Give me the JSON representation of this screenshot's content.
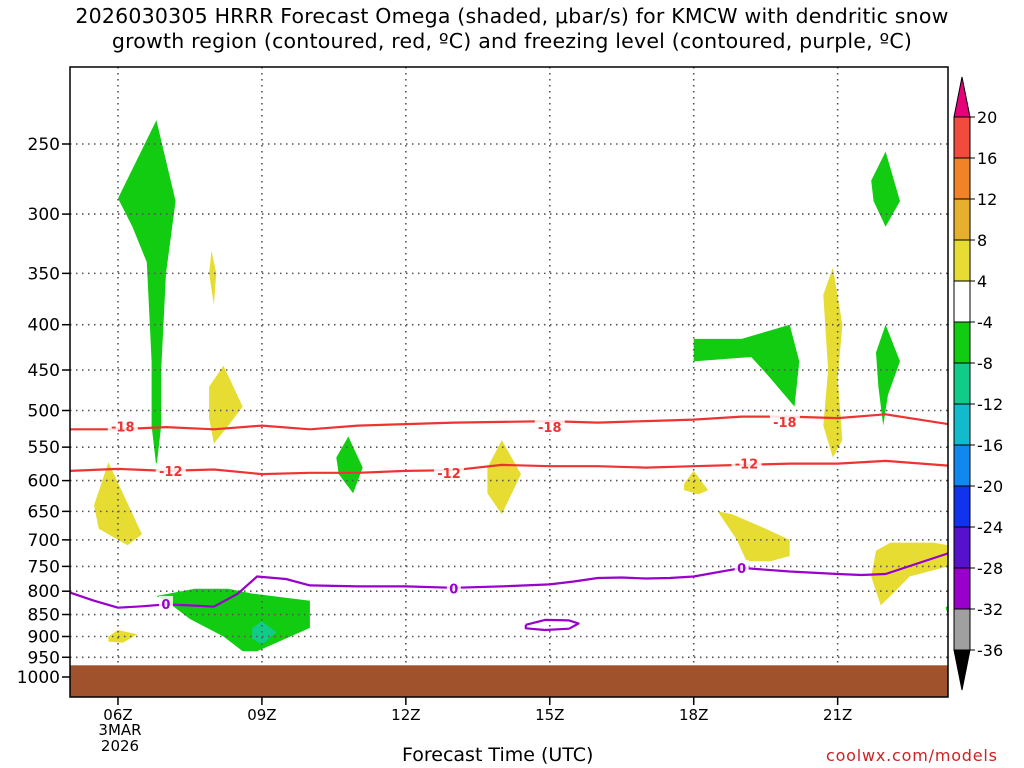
{
  "title": "2026030305 HRRR Forecast Omega (shaded, μbar/s) for KMCW with dendritic snow\ngrowth region (contoured, red, ºC) and freezing level (contoured, purple, ºC)",
  "x_axis_title": "Forecast Time (UTC)",
  "credit": "coolwx.com/models",
  "start_date": [
    "3MAR",
    "2026"
  ],
  "chart_data": {
    "type": "time-height cross section",
    "title": "2026030305 HRRR Forecast Omega (shaded, μbar/s) for KMCW with dendritic snow growth region (contoured, red, ºC) and freezing level (contoured, purple, ºC)",
    "xlabel": "Forecast Time (UTC)",
    "ylabel": "",
    "x_ticks": [
      6,
      9,
      12,
      15,
      18,
      21
    ],
    "x_tick_labels": [
      "06Z",
      "09Z",
      "12Z",
      "15Z",
      "18Z",
      "21Z"
    ],
    "xlim": [
      5,
      23.3
    ],
    "y_ticks": [
      250,
      300,
      350,
      400,
      450,
      500,
      550,
      600,
      650,
      700,
      750,
      800,
      850,
      900,
      950,
      1000
    ],
    "ylim": [
      200,
      1030
    ],
    "y_scale": "log-pressure",
    "grid": true,
    "ground_below_hpa": 970,
    "ground_color": "#a0522d",
    "colorbar": {
      "levels": [
        -36,
        -32,
        -28,
        -24,
        -20,
        -16,
        -12,
        -8,
        -4,
        4,
        8,
        12,
        16,
        20
      ],
      "colors": [
        "#000000",
        "#a0a0a0",
        "#9900cc",
        "#5511cc",
        "#1133ee",
        "#1188ee",
        "#11bbcc",
        "#11cc88",
        "#11cc11",
        "#ffffff",
        "#e6dc32",
        "#e6af2d",
        "#f08228",
        "#f04b3c",
        "#e6007a"
      ]
    },
    "omega_regions": [
      {
        "value": -6,
        "color": "#11cc11",
        "points": [
          [
            6.0,
            288
          ],
          [
            6.8,
            235
          ],
          [
            7.2,
            290
          ],
          [
            7.0,
            350
          ],
          [
            6.9,
            450
          ],
          [
            6.9,
            520
          ],
          [
            6.8,
            580
          ],
          [
            6.7,
            520
          ],
          [
            6.7,
            440
          ],
          [
            6.6,
            340
          ],
          [
            6.3,
            310
          ]
        ]
      },
      {
        "value": 6,
        "color": "#e6dc32",
        "points": [
          [
            7.95,
            330
          ],
          [
            8.05,
            350
          ],
          [
            8.0,
            380
          ],
          [
            7.9,
            350
          ]
        ]
      },
      {
        "value": 6,
        "color": "#e6dc32",
        "points": [
          [
            7.9,
            470
          ],
          [
            8.2,
            445
          ],
          [
            8.6,
            495
          ],
          [
            8.3,
            520
          ],
          [
            8.0,
            545
          ],
          [
            7.9,
            510
          ]
        ]
      },
      {
        "value": -6,
        "color": "#11cc11",
        "points": [
          [
            10.55,
            565
          ],
          [
            10.8,
            535
          ],
          [
            11.1,
            580
          ],
          [
            10.9,
            620
          ],
          [
            10.6,
            590
          ]
        ]
      },
      {
        "value": 6,
        "color": "#e6dc32",
        "points": [
          [
            5.5,
            640
          ],
          [
            5.8,
            572
          ],
          [
            6.5,
            690
          ],
          [
            6.2,
            710
          ],
          [
            5.6,
            680
          ]
        ]
      },
      {
        "value": 6,
        "color": "#e6dc32",
        "points": [
          [
            5.8,
            900
          ],
          [
            6.0,
            885
          ],
          [
            6.4,
            895
          ],
          [
            6.1,
            915
          ],
          [
            5.8,
            912
          ]
        ]
      },
      {
        "value": -6,
        "color": "#11cc11",
        "points": [
          [
            6.8,
            810
          ],
          [
            7.6,
            795
          ],
          [
            8.3,
            795
          ],
          [
            8.8,
            805
          ],
          [
            10.0,
            820
          ],
          [
            10.0,
            880
          ],
          [
            9.2,
            920
          ],
          [
            8.9,
            935
          ],
          [
            8.6,
            935
          ],
          [
            8.2,
            900
          ],
          [
            7.5,
            860
          ],
          [
            7.0,
            820
          ]
        ]
      },
      {
        "value": -10,
        "color": "#11cc88",
        "points": [
          [
            8.8,
            880
          ],
          [
            9.0,
            865
          ],
          [
            9.3,
            890
          ],
          [
            9.0,
            920
          ],
          [
            8.8,
            905
          ]
        ]
      },
      {
        "value": 6,
        "color": "#e6dc32",
        "points": [
          [
            13.7,
            580
          ],
          [
            14.0,
            540
          ],
          [
            14.4,
            590
          ],
          [
            14.0,
            655
          ],
          [
            13.7,
            620
          ]
        ]
      },
      {
        "value": -6,
        "color": "#11cc11",
        "points": [
          [
            18.0,
            415
          ],
          [
            19.0,
            415
          ],
          [
            20.0,
            400
          ],
          [
            20.2,
            440
          ],
          [
            20.1,
            495
          ],
          [
            19.6,
            460
          ],
          [
            19.2,
            435
          ],
          [
            18.0,
            440
          ]
        ]
      },
      {
        "value": 6,
        "color": "#e6dc32",
        "points": [
          [
            17.8,
            605
          ],
          [
            18.0,
            585
          ],
          [
            18.3,
            615
          ],
          [
            18.1,
            622
          ],
          [
            17.8,
            615
          ]
        ]
      },
      {
        "value": 6,
        "color": "#e6dc32",
        "points": [
          [
            18.5,
            650
          ],
          [
            18.8,
            655
          ],
          [
            19.5,
            680
          ],
          [
            20.0,
            700
          ],
          [
            20.0,
            730
          ],
          [
            19.6,
            740
          ],
          [
            19.1,
            740
          ],
          [
            18.9,
            700
          ]
        ]
      },
      {
        "value": 6,
        "color": "#e6dc32",
        "points": [
          [
            20.7,
            370
          ],
          [
            20.9,
            345
          ],
          [
            21.1,
            400
          ],
          [
            21.0,
            460
          ],
          [
            21.1,
            540
          ],
          [
            20.9,
            565
          ],
          [
            20.7,
            520
          ],
          [
            20.8,
            450
          ]
        ]
      },
      {
        "value": -6,
        "color": "#11cc11",
        "points": [
          [
            21.7,
            275
          ],
          [
            22.0,
            255
          ],
          [
            22.3,
            290
          ],
          [
            22.0,
            310
          ],
          [
            21.75,
            290
          ]
        ]
      },
      {
        "value": -6,
        "color": "#11cc11",
        "points": [
          [
            21.8,
            430
          ],
          [
            22.0,
            400
          ],
          [
            22.3,
            440
          ],
          [
            22.05,
            480
          ],
          [
            21.95,
            520
          ],
          [
            21.85,
            470
          ]
        ]
      },
      {
        "value": 6,
        "color": "#e6dc32",
        "points": [
          [
            21.8,
            720
          ],
          [
            22.1,
            705
          ],
          [
            23.0,
            705
          ],
          [
            23.3,
            710
          ],
          [
            23.3,
            750
          ],
          [
            22.5,
            770
          ],
          [
            22.2,
            800
          ],
          [
            21.9,
            830
          ],
          [
            21.7,
            770
          ]
        ]
      },
      {
        "value": -6,
        "color": "#11cc11",
        "points": [
          [
            23.25,
            835
          ],
          [
            23.3,
            830
          ],
          [
            23.3,
            850
          ]
        ]
      }
    ],
    "series": [
      {
        "name": "-18",
        "color": "#ee3333",
        "label_at": [
          [
            6.1,
            521
          ],
          [
            15.0,
            522
          ],
          [
            19.9,
            515
          ]
        ],
        "x": [
          5.0,
          6.0,
          7.0,
          8.0,
          9.0,
          10.0,
          11.0,
          12.0,
          13.0,
          14.0,
          15.0,
          16.0,
          17.0,
          18.0,
          19.0,
          20.0,
          21.0,
          22.0,
          23.3
        ],
        "y": [
          525,
          525,
          522,
          525,
          520,
          525,
          520,
          518,
          516,
          515,
          514,
          516,
          514,
          512,
          508,
          508,
          510,
          505,
          518
        ]
      },
      {
        "name": "-12",
        "color": "#ee3333",
        "label_at": [
          [
            7.1,
            585
          ],
          [
            12.9,
            588
          ],
          [
            19.1,
            574
          ]
        ],
        "x": [
          5.0,
          6.0,
          7.0,
          8.0,
          9.0,
          10.0,
          11.0,
          12.0,
          13.0,
          14.0,
          15.0,
          16.0,
          17.0,
          18.0,
          19.0,
          20.0,
          21.0,
          22.0,
          23.3
        ],
        "y": [
          585,
          582,
          585,
          583,
          590,
          588,
          588,
          585,
          584,
          576,
          578,
          578,
          580,
          578,
          576,
          574,
          574,
          570,
          577
        ]
      },
      {
        "name": "0",
        "color": "#9900cc",
        "label_at": [
          [
            7.0,
            827
          ],
          [
            13.0,
            794
          ],
          [
            19.0,
            753
          ]
        ],
        "x": [
          5.0,
          5.5,
          6.0,
          6.5,
          7.0,
          7.5,
          8.0,
          8.5,
          8.9,
          9.5,
          10.0,
          11.0,
          12.0,
          13.0,
          14.0,
          15.0,
          15.5,
          16.0,
          16.5,
          17.0,
          17.5,
          18.0,
          19.0,
          20.0,
          21.0,
          21.5,
          22.0,
          23.3
        ],
        "y": [
          803,
          820,
          835,
          832,
          828,
          830,
          833,
          805,
          770,
          775,
          788,
          790,
          790,
          793,
          790,
          786,
          780,
          773,
          772,
          774,
          773,
          770,
          753,
          760,
          765,
          767,
          765,
          725
        ]
      },
      {
        "name": "0",
        "color": "#9900cc",
        "label_at": [],
        "x": [
          14.5,
          14.9,
          15.4,
          15.6,
          15.4,
          14.9,
          14.5,
          14.5
        ],
        "y": [
          873,
          862,
          863,
          870,
          882,
          885,
          881,
          873
        ]
      }
    ]
  }
}
